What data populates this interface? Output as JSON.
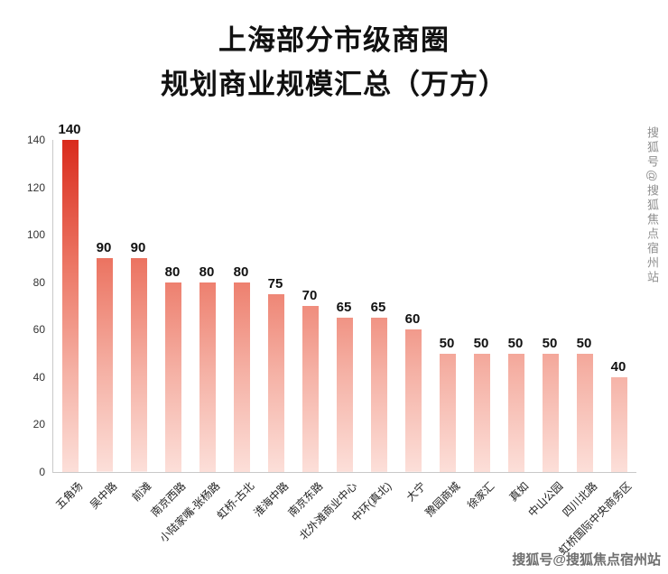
{
  "chart_data": {
    "type": "bar",
    "title_line1": "上海部分市级商圈",
    "title_line2": "规划商业规模汇总（万方）",
    "categories": [
      "五角场",
      "吴中路",
      "前滩",
      "南京西路",
      "小陆家嘴-张杨路",
      "虹桥-古北",
      "淮海中路",
      "南京东路",
      "北外滩商业中心",
      "中环(真北)",
      "大宁",
      "豫园商城",
      "徐家汇",
      "真如",
      "中山公园",
      "四川北路",
      "虹桥国际中央商务区"
    ],
    "values": [
      140,
      90,
      90,
      80,
      80,
      80,
      75,
      70,
      65,
      65,
      60,
      50,
      50,
      50,
      50,
      50,
      40
    ],
    "xlabel": "",
    "ylabel": "",
    "ylim": [
      0,
      140
    ],
    "yticks": [
      0,
      20,
      40,
      60,
      80,
      100,
      120,
      140
    ],
    "grid": false,
    "legend": false,
    "bar_gradient": [
      "#d92b1c",
      "#ec7765",
      "#f5b1a5",
      "#fcdfd9"
    ]
  },
  "watermarks": {
    "side": "搜狐号@搜狐焦点宿州站",
    "bottom": "搜狐号@搜狐焦点宿州站"
  }
}
